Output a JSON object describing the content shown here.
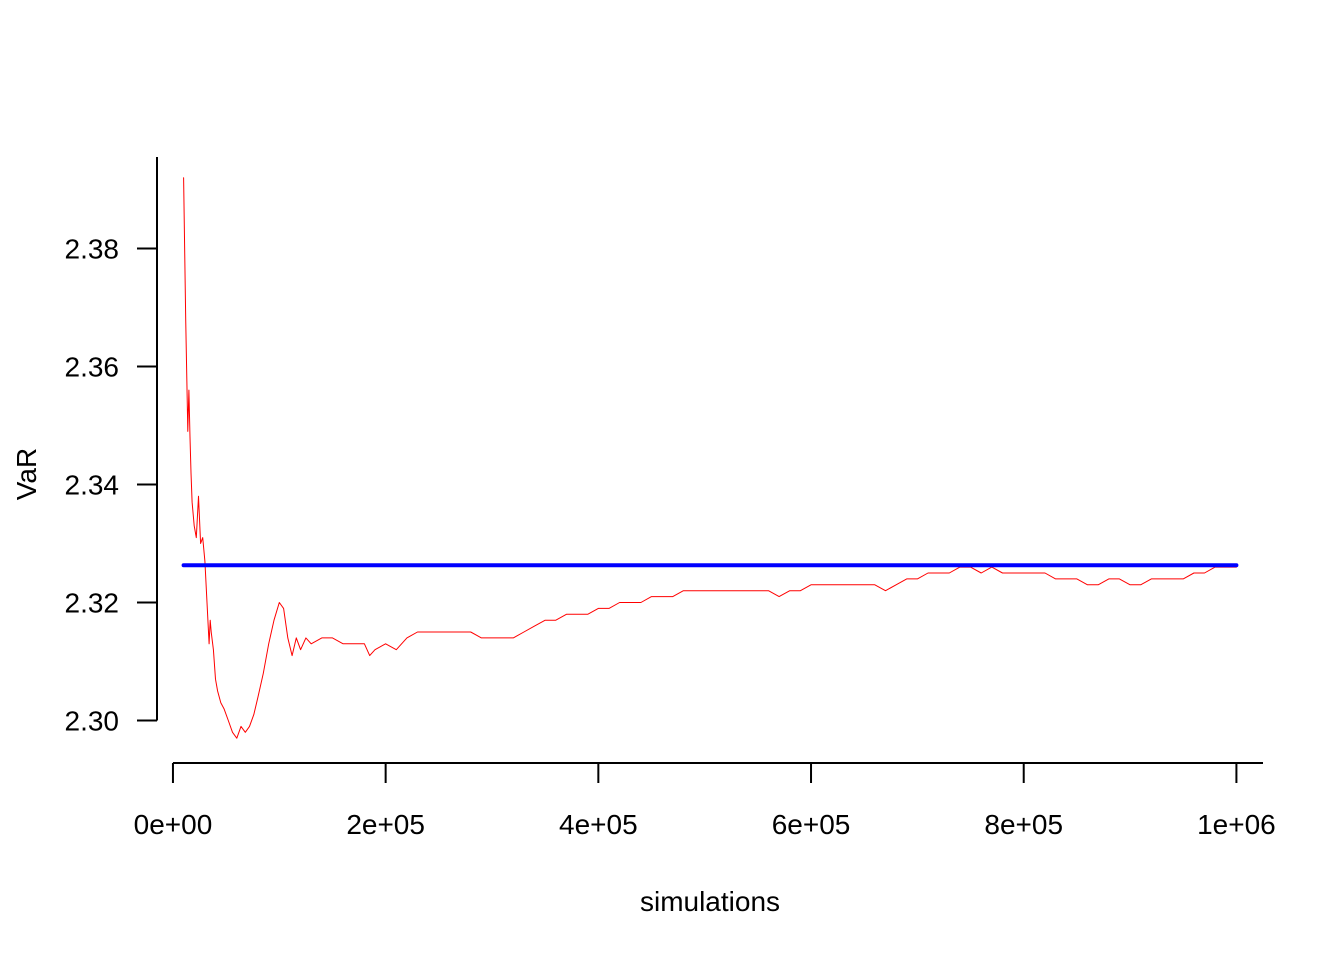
{
  "chart_data": {
    "type": "line",
    "title": "",
    "xlabel": "simulations",
    "ylabel": "VaR",
    "xlim": [
      -15000,
      1025000
    ],
    "ylim": [
      2.2928,
      2.3955
    ],
    "x_ticks": [
      0,
      200000,
      400000,
      600000,
      800000,
      1000000
    ],
    "x_tick_labels": [
      "0e+00",
      "2e+05",
      "4e+05",
      "6e+05",
      "8e+05",
      "1e+06"
    ],
    "y_ticks": [
      2.3,
      2.32,
      2.34,
      2.36,
      2.38
    ],
    "y_tick_labels": [
      "2.30",
      "2.32",
      "2.34",
      "2.36",
      "2.38"
    ],
    "grid": false,
    "legend": "none",
    "series": [
      {
        "color": "#ff0000",
        "line_width": 1,
        "x": [
          10000,
          12000,
          14000,
          15000,
          16000,
          17000,
          18000,
          20000,
          22000,
          24000,
          26000,
          28000,
          30000,
          32000,
          34000,
          35000,
          36000,
          38000,
          40000,
          42000,
          45000,
          48000,
          52000,
          56000,
          60000,
          64000,
          68000,
          72000,
          76000,
          80000,
          85000,
          90000,
          95000,
          100000,
          104000,
          108000,
          112000,
          116000,
          120000,
          125000,
          130000,
          140000,
          150000,
          160000,
          170000,
          180000,
          185000,
          190000,
          200000,
          210000,
          220000,
          230000,
          240000,
          250000,
          260000,
          270000,
          280000,
          290000,
          300000,
          310000,
          320000,
          330000,
          340000,
          350000,
          360000,
          370000,
          380000,
          390000,
          400000,
          410000,
          420000,
          430000,
          440000,
          450000,
          460000,
          470000,
          480000,
          490000,
          500000,
          510000,
          520000,
          530000,
          540000,
          550000,
          560000,
          570000,
          580000,
          590000,
          600000,
          610000,
          620000,
          630000,
          640000,
          650000,
          660000,
          670000,
          680000,
          690000,
          700000,
          710000,
          720000,
          730000,
          740000,
          750000,
          760000,
          770000,
          780000,
          790000,
          800000,
          810000,
          820000,
          830000,
          840000,
          850000,
          860000,
          870000,
          880000,
          890000,
          900000,
          910000,
          920000,
          930000,
          940000,
          950000,
          960000,
          970000,
          980000,
          990000,
          1000000
        ],
        "y": [
          2.392,
          2.368,
          2.349,
          2.356,
          2.348,
          2.342,
          2.337,
          2.333,
          2.331,
          2.338,
          2.33,
          2.331,
          2.327,
          2.32,
          2.313,
          2.317,
          2.315,
          2.312,
          2.307,
          2.305,
          2.303,
          2.302,
          2.3,
          2.298,
          2.297,
          2.299,
          2.298,
          2.299,
          2.301,
          2.304,
          2.308,
          2.313,
          2.317,
          2.32,
          2.319,
          2.314,
          2.311,
          2.314,
          2.312,
          2.314,
          2.313,
          2.314,
          2.314,
          2.313,
          2.313,
          2.313,
          2.311,
          2.312,
          2.313,
          2.312,
          2.314,
          2.315,
          2.315,
          2.315,
          2.315,
          2.315,
          2.315,
          2.314,
          2.314,
          2.314,
          2.314,
          2.315,
          2.316,
          2.317,
          2.317,
          2.318,
          2.318,
          2.318,
          2.319,
          2.319,
          2.32,
          2.32,
          2.32,
          2.321,
          2.321,
          2.321,
          2.322,
          2.322,
          2.322,
          2.322,
          2.322,
          2.322,
          2.322,
          2.322,
          2.322,
          2.321,
          2.322,
          2.322,
          2.323,
          2.323,
          2.323,
          2.323,
          2.323,
          2.323,
          2.323,
          2.322,
          2.323,
          2.324,
          2.324,
          2.325,
          2.325,
          2.325,
          2.326,
          2.326,
          2.325,
          2.326,
          2.325,
          2.325,
          2.325,
          2.325,
          2.325,
          2.324,
          2.324,
          2.324,
          2.323,
          2.323,
          2.324,
          2.324,
          2.323,
          2.323,
          2.324,
          2.324,
          2.324,
          2.324,
          2.325,
          2.325,
          2.326,
          2.326,
          2.326
        ]
      },
      {
        "color": "#0000ff",
        "line_width": 4,
        "x": [
          10000,
          1000000
        ],
        "y": [
          2.3263,
          2.3263
        ]
      }
    ]
  }
}
